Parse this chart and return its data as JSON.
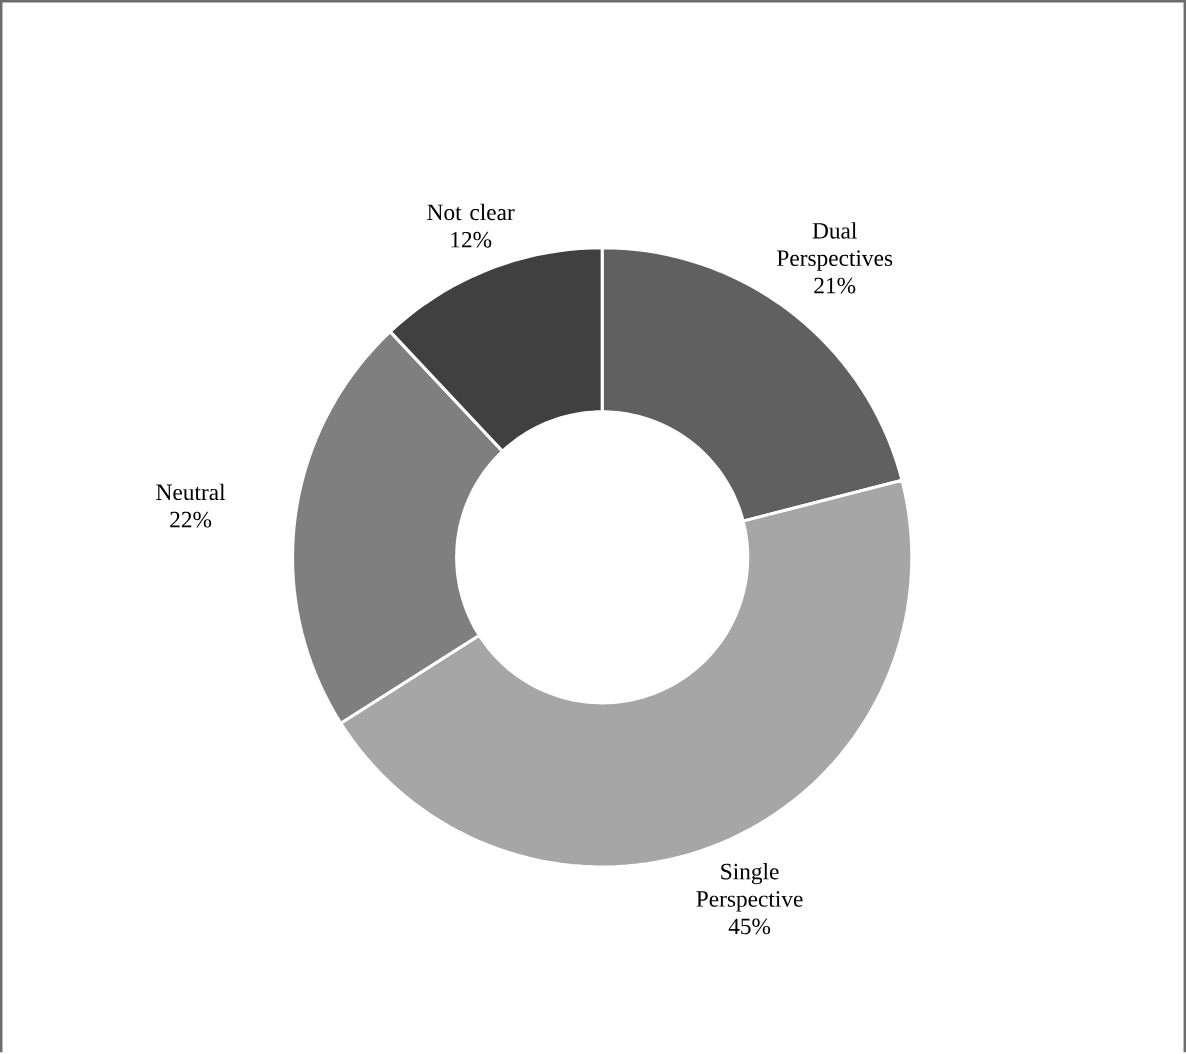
{
  "chart_data": {
    "type": "donut",
    "categories": [
      "Dual Perspectives",
      "Single Perspective",
      "Neutral",
      "Not clear"
    ],
    "values": [
      21,
      45,
      22,
      12
    ],
    "value_labels": [
      "21%",
      "45%",
      "22%",
      "12%"
    ],
    "colors": [
      "#606060",
      "#a6a6a6",
      "#7f7f7f",
      "#404040"
    ]
  }
}
